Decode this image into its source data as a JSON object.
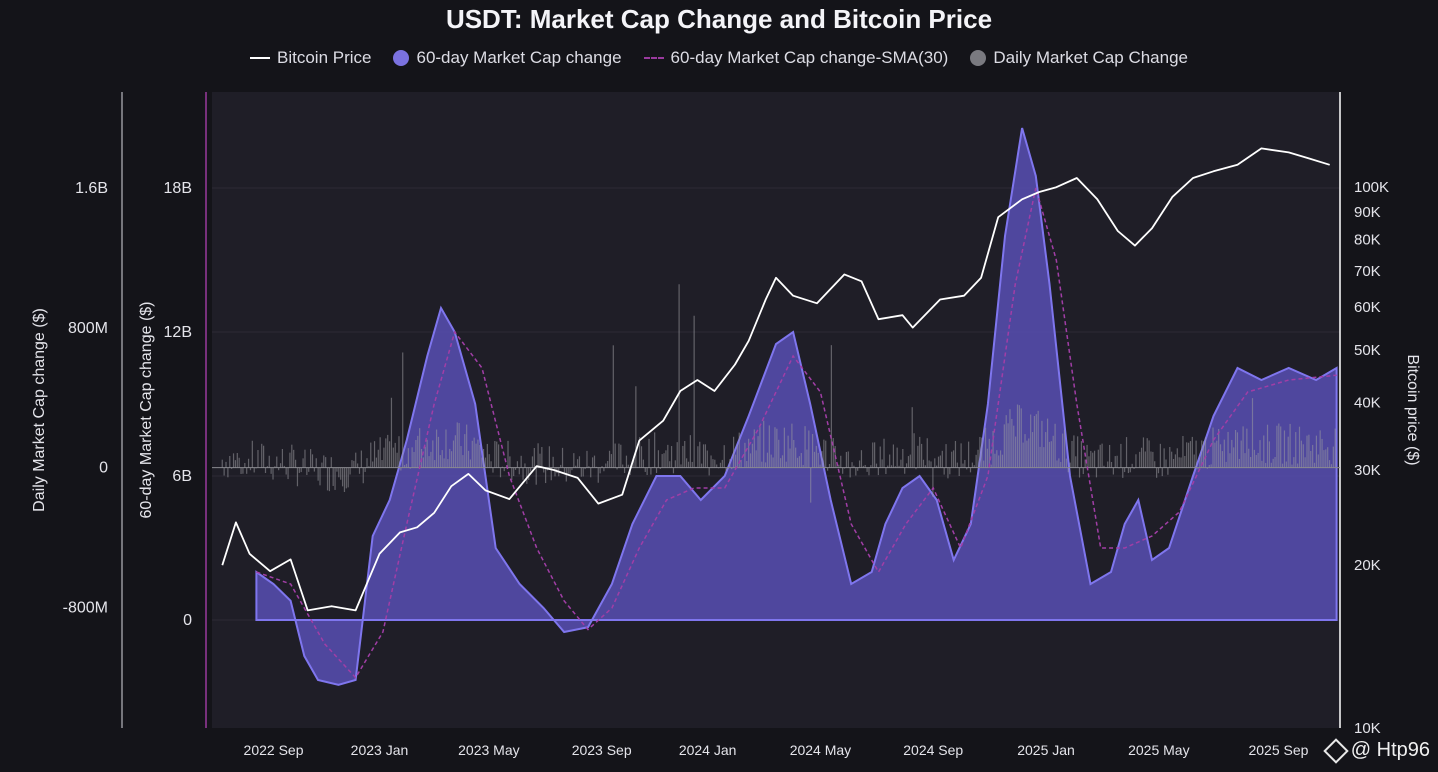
{
  "chart_data": {
    "type": "area",
    "title": "USDT: Market Cap Change and Bitcoin Price",
    "legend": [
      {
        "label": "Bitcoin Price",
        "style": "line",
        "color": "#ffffff"
      },
      {
        "label": "60-day Market Cap change",
        "style": "dot",
        "color": "#7b72e0"
      },
      {
        "label": "60-day Market Cap change-SMA(30)",
        "style": "dashed",
        "color": "#9a3a9e"
      },
      {
        "label": "Daily Market Cap Change",
        "style": "dot",
        "color": "#7a7a80"
      }
    ],
    "x_ticks": [
      "2022 Sep",
      "2023 Jan",
      "2023 May",
      "2023 Sep",
      "2024 Jan",
      "2024 May",
      "2024 Sep",
      "2025 Jan",
      "2025 May",
      "2025 Sep"
    ],
    "x_range": [
      2022.55,
      2025.85
    ],
    "axis_daily": {
      "label": "Daily Market Cap change ($)",
      "ticks": [
        "1.6B",
        "800M",
        "0",
        "-800M"
      ],
      "tick_values": [
        1600,
        800,
        0,
        -800
      ],
      "range": [
        -1490,
        2150
      ]
    },
    "axis_60d": {
      "label": "60-day Market Cap change ($)",
      "ticks": [
        "18B",
        "12B",
        "6B",
        "0"
      ],
      "tick_values": [
        18,
        12,
        6,
        0
      ],
      "range": [
        -4.5,
        22
      ]
    },
    "axis_btc": {
      "label": "Bitcoin price ($)",
      "ticks": [
        "100K",
        "90K",
        "80K",
        "70K",
        "60K",
        "50K",
        "40K",
        "30K",
        "20K",
        "10K"
      ],
      "tick_values": [
        100,
        90,
        80,
        70,
        60,
        50,
        40,
        30,
        20,
        10
      ],
      "range": [
        10,
        150
      ],
      "scale": "log"
    },
    "btc_series": [
      [
        2022.58,
        20
      ],
      [
        2022.62,
        24
      ],
      [
        2022.66,
        21
      ],
      [
        2022.72,
        19.5
      ],
      [
        2022.78,
        20.5
      ],
      [
        2022.83,
        16.5
      ],
      [
        2022.9,
        16.8
      ],
      [
        2022.97,
        16.5
      ],
      [
        2023.04,
        21
      ],
      [
        2023.1,
        23
      ],
      [
        2023.15,
        23.5
      ],
      [
        2023.2,
        25
      ],
      [
        2023.25,
        28
      ],
      [
        2023.3,
        29.5
      ],
      [
        2023.35,
        27.5
      ],
      [
        2023.42,
        26.5
      ],
      [
        2023.5,
        30.5
      ],
      [
        2023.55,
        30
      ],
      [
        2023.62,
        29
      ],
      [
        2023.68,
        26
      ],
      [
        2023.75,
        27
      ],
      [
        2023.8,
        34
      ],
      [
        2023.87,
        37
      ],
      [
        2023.92,
        42
      ],
      [
        2023.97,
        44
      ],
      [
        2024.02,
        42
      ],
      [
        2024.08,
        47
      ],
      [
        2024.12,
        52
      ],
      [
        2024.17,
        62
      ],
      [
        2024.2,
        68
      ],
      [
        2024.25,
        63
      ],
      [
        2024.32,
        61
      ],
      [
        2024.4,
        69
      ],
      [
        2024.45,
        67
      ],
      [
        2024.5,
        57
      ],
      [
        2024.57,
        58
      ],
      [
        2024.6,
        55
      ],
      [
        2024.68,
        62
      ],
      [
        2024.75,
        63
      ],
      [
        2024.8,
        68
      ],
      [
        2024.85,
        88
      ],
      [
        2024.92,
        95
      ],
      [
        2024.97,
        98
      ],
      [
        2025.02,
        100
      ],
      [
        2025.08,
        104
      ],
      [
        2025.14,
        95
      ],
      [
        2025.2,
        83
      ],
      [
        2025.25,
        78
      ],
      [
        2025.3,
        84
      ],
      [
        2025.36,
        96
      ],
      [
        2025.42,
        104
      ],
      [
        2025.48,
        107
      ],
      [
        2025.55,
        110
      ],
      [
        2025.62,
        118
      ],
      [
        2025.7,
        116
      ],
      [
        2025.76,
        113
      ],
      [
        2025.82,
        110
      ]
    ],
    "mc60_series": [
      [
        2022.68,
        2
      ],
      [
        2022.73,
        1.5
      ],
      [
        2022.78,
        0.8
      ],
      [
        2022.82,
        -1.5
      ],
      [
        2022.86,
        -2.5
      ],
      [
        2022.92,
        -2.7
      ],
      [
        2022.97,
        -2.5
      ],
      [
        2023.02,
        3.5
      ],
      [
        2023.07,
        5
      ],
      [
        2023.12,
        7.5
      ],
      [
        2023.18,
        11
      ],
      [
        2023.22,
        13
      ],
      [
        2023.26,
        12
      ],
      [
        2023.32,
        9
      ],
      [
        2023.38,
        3
      ],
      [
        2023.45,
        1.5
      ],
      [
        2023.52,
        0.5
      ],
      [
        2023.58,
        -0.5
      ],
      [
        2023.65,
        -0.3
      ],
      [
        2023.72,
        1.5
      ],
      [
        2023.78,
        4
      ],
      [
        2023.85,
        6
      ],
      [
        2023.92,
        6
      ],
      [
        2023.98,
        5
      ],
      [
        2024.05,
        6
      ],
      [
        2024.12,
        8.5
      ],
      [
        2024.2,
        11.5
      ],
      [
        2024.25,
        12
      ],
      [
        2024.3,
        9
      ],
      [
        2024.36,
        5
      ],
      [
        2024.42,
        1.5
      ],
      [
        2024.48,
        2
      ],
      [
        2024.52,
        4
      ],
      [
        2024.57,
        5.5
      ],
      [
        2024.62,
        6
      ],
      [
        2024.67,
        5
      ],
      [
        2024.72,
        2.5
      ],
      [
        2024.77,
        4
      ],
      [
        2024.82,
        9
      ],
      [
        2024.87,
        16
      ],
      [
        2024.92,
        20.5
      ],
      [
        2024.96,
        18.5
      ],
      [
        2025.0,
        14
      ],
      [
        2025.06,
        6
      ],
      [
        2025.12,
        1.5
      ],
      [
        2025.18,
        2
      ],
      [
        2025.22,
        4
      ],
      [
        2025.26,
        5
      ],
      [
        2025.3,
        2.5
      ],
      [
        2025.35,
        3
      ],
      [
        2025.42,
        6
      ],
      [
        2025.48,
        8.5
      ],
      [
        2025.55,
        10.5
      ],
      [
        2025.62,
        10
      ],
      [
        2025.7,
        10.5
      ],
      [
        2025.78,
        10
      ],
      [
        2025.84,
        10.5
      ]
    ],
    "sma_series": [
      [
        2022.68,
        2
      ],
      [
        2022.78,
        1.5
      ],
      [
        2022.88,
        -1
      ],
      [
        2022.97,
        -2.4
      ],
      [
        2023.05,
        -0.5
      ],
      [
        2023.12,
        4
      ],
      [
        2023.2,
        9
      ],
      [
        2023.26,
        12
      ],
      [
        2023.34,
        10.5
      ],
      [
        2023.42,
        6
      ],
      [
        2023.5,
        3
      ],
      [
        2023.58,
        0.8
      ],
      [
        2023.65,
        -0.4
      ],
      [
        2023.72,
        0.5
      ],
      [
        2023.8,
        3
      ],
      [
        2023.88,
        5
      ],
      [
        2023.96,
        5.5
      ],
      [
        2024.05,
        5.5
      ],
      [
        2024.15,
        8
      ],
      [
        2024.25,
        11
      ],
      [
        2024.33,
        9.5
      ],
      [
        2024.42,
        4
      ],
      [
        2024.5,
        2
      ],
      [
        2024.58,
        4
      ],
      [
        2024.66,
        5.5
      ],
      [
        2024.74,
        3
      ],
      [
        2024.82,
        6
      ],
      [
        2024.9,
        14
      ],
      [
        2024.96,
        18
      ],
      [
        2025.02,
        15
      ],
      [
        2025.08,
        9
      ],
      [
        2025.15,
        3
      ],
      [
        2025.22,
        3
      ],
      [
        2025.3,
        3.5
      ],
      [
        2025.38,
        4.5
      ],
      [
        2025.48,
        7.5
      ],
      [
        2025.58,
        9.5
      ],
      [
        2025.7,
        10
      ],
      [
        2025.84,
        10.2
      ]
    ]
  },
  "watermark": {
    "text": "@ Htp96"
  }
}
